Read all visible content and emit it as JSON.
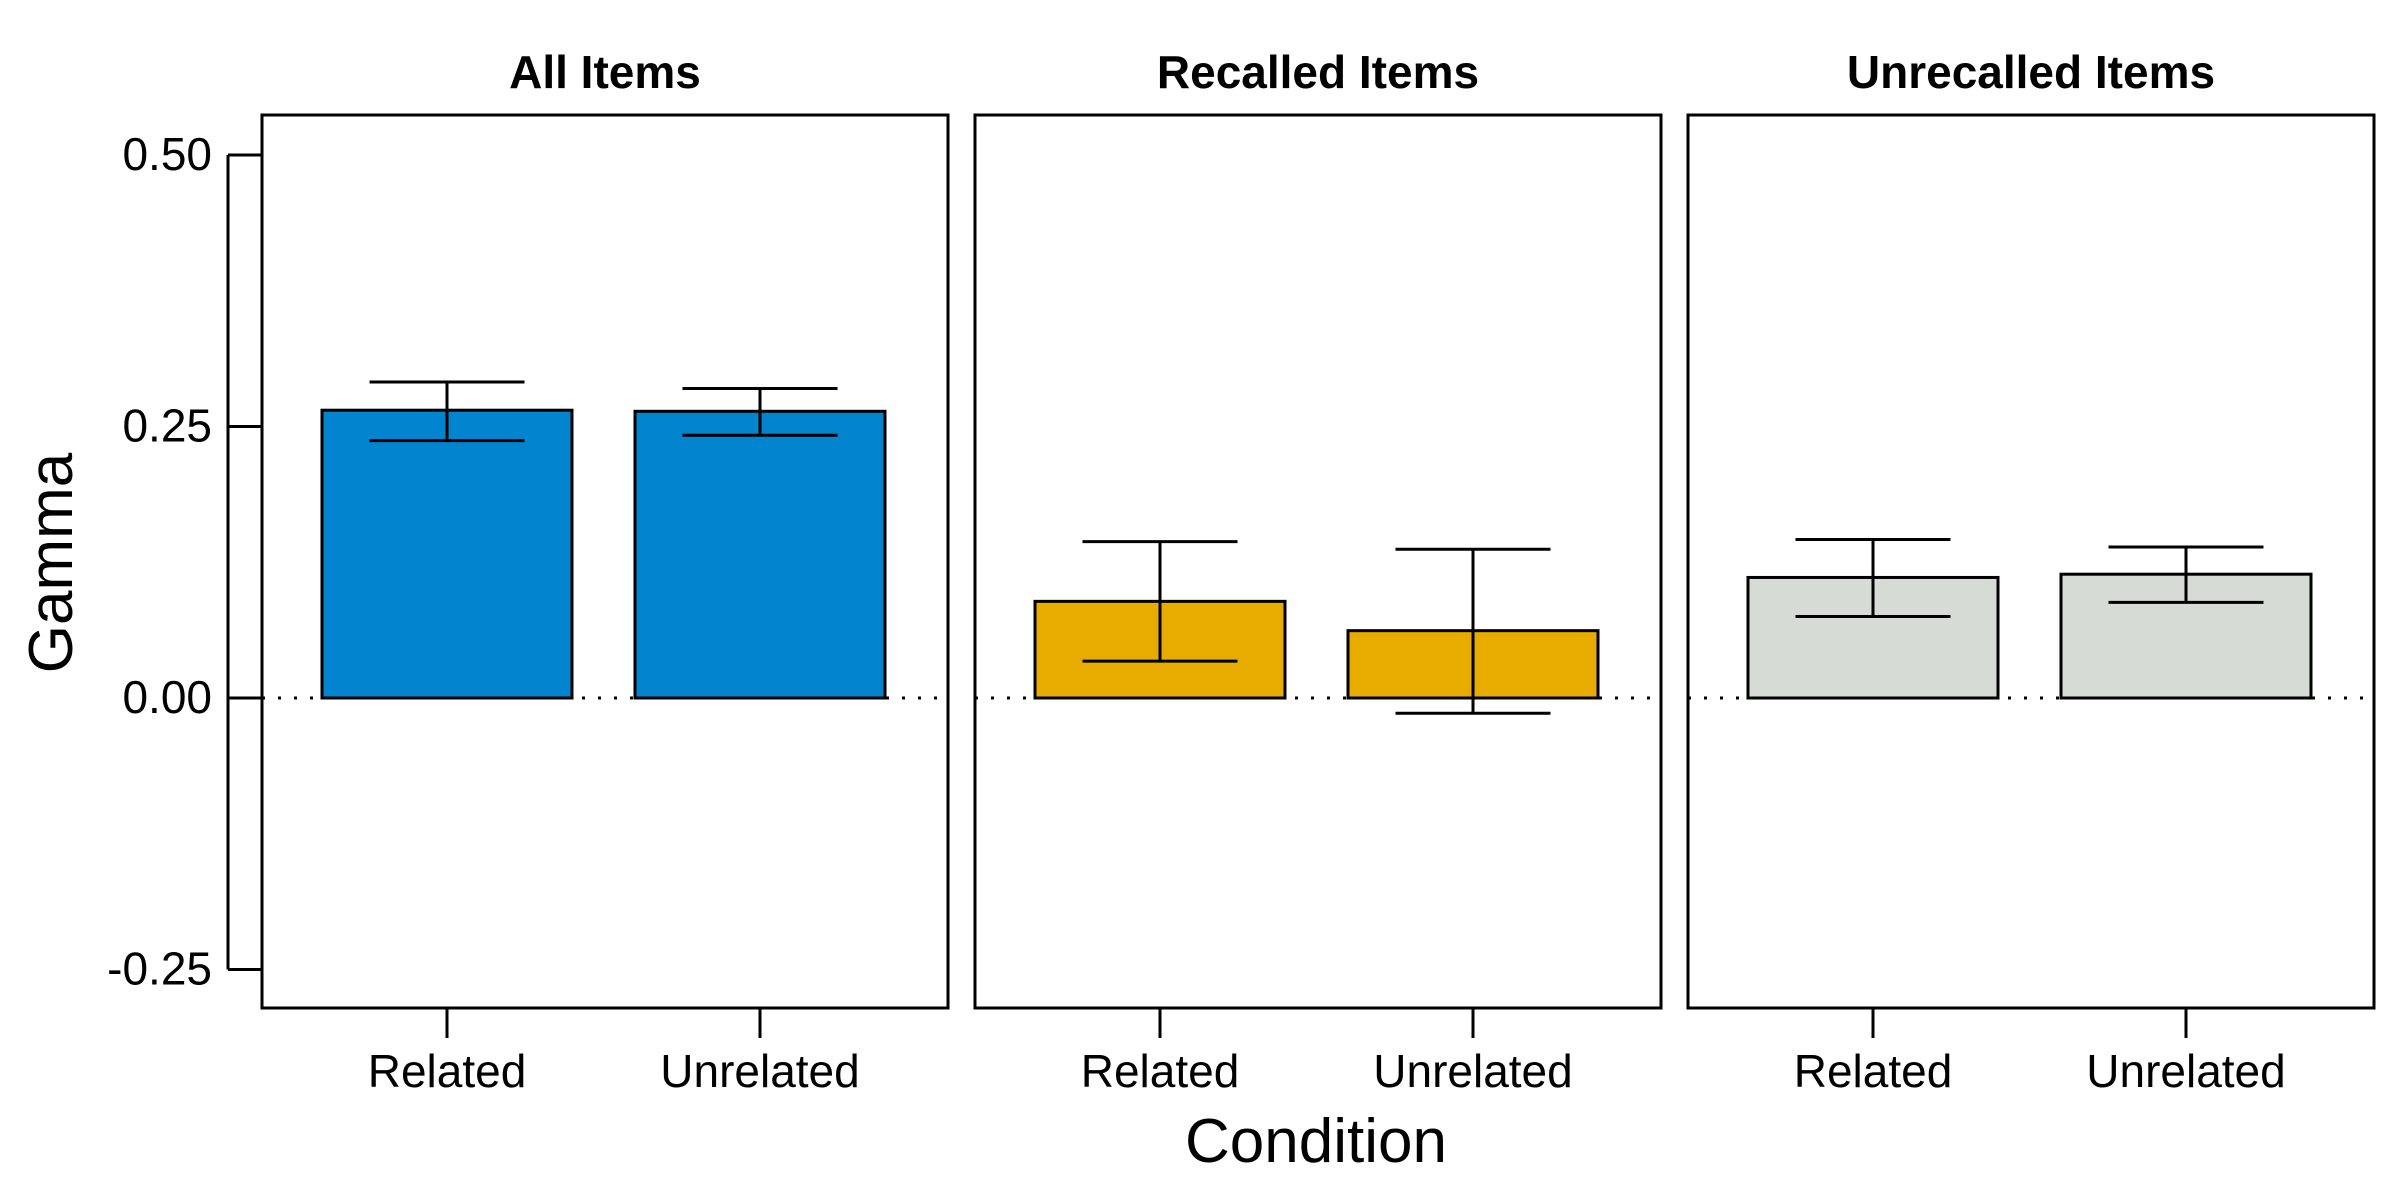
{
  "chart_data": {
    "type": "bar",
    "ylabel": "Gamma",
    "xlabel": "Condition",
    "ylim": [
      -0.3,
      0.535
    ],
    "yticks": [
      -0.25,
      0.0,
      0.25,
      0.5
    ],
    "ytick_labels": [
      "-0.25",
      "0.00",
      "0.25",
      "0.50"
    ],
    "reference_line": {
      "y": 0.0,
      "style": "dotted"
    },
    "grid": false,
    "legend": "none",
    "panels": [
      {
        "title": "All Items",
        "color": "#0284CE",
        "categories": [
          "Related",
          "Unrelated"
        ],
        "values": [
          0.265,
          0.264
        ],
        "error_low": [
          0.237,
          0.242
        ],
        "error_high": [
          0.291,
          0.285
        ]
      },
      {
        "title": "Recalled Items",
        "color": "#E8AC00",
        "categories": [
          "Related",
          "Unrelated"
        ],
        "values": [
          0.089,
          0.062
        ],
        "error_low": [
          0.034,
          -0.014
        ],
        "error_high": [
          0.144,
          0.137
        ]
      },
      {
        "title": "Unrecalled Items",
        "color": "#D6DBD5",
        "categories": [
          "Related",
          "Unrelated"
        ],
        "values": [
          0.111,
          0.114
        ],
        "error_low": [
          0.075,
          0.088
        ],
        "error_high": [
          0.146,
          0.139
        ]
      }
    ]
  }
}
